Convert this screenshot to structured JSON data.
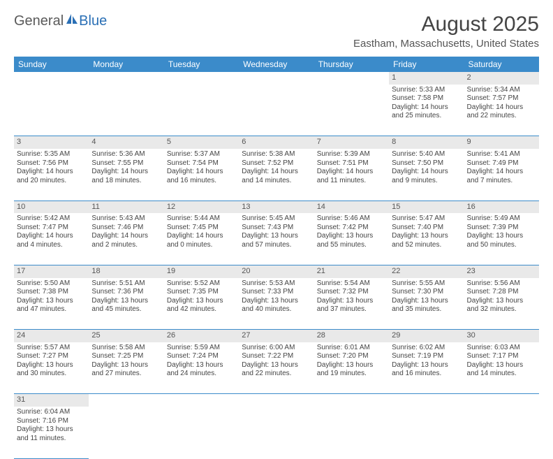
{
  "logo": {
    "part1": "General",
    "part2": "Blue"
  },
  "title": "August 2025",
  "location": "Eastham, Massachusetts, United States",
  "colors": {
    "header_bg": "#3b8bca",
    "header_text": "#ffffff",
    "daynum_bg": "#e9e9e9",
    "border": "#3b8bca",
    "logo_accent": "#2a6fb5",
    "body_text": "#444444"
  },
  "columns": [
    "Sunday",
    "Monday",
    "Tuesday",
    "Wednesday",
    "Thursday",
    "Friday",
    "Saturday"
  ],
  "weeks": [
    {
      "nums": [
        "",
        "",
        "",
        "",
        "",
        "1",
        "2"
      ],
      "cells": [
        null,
        null,
        null,
        null,
        null,
        {
          "sunrise": "5:33 AM",
          "sunset": "7:58 PM",
          "daylight": "14 hours and 25 minutes."
        },
        {
          "sunrise": "5:34 AM",
          "sunset": "7:57 PM",
          "daylight": "14 hours and 22 minutes."
        }
      ]
    },
    {
      "nums": [
        "3",
        "4",
        "5",
        "6",
        "7",
        "8",
        "9"
      ],
      "cells": [
        {
          "sunrise": "5:35 AM",
          "sunset": "7:56 PM",
          "daylight": "14 hours and 20 minutes."
        },
        {
          "sunrise": "5:36 AM",
          "sunset": "7:55 PM",
          "daylight": "14 hours and 18 minutes."
        },
        {
          "sunrise": "5:37 AM",
          "sunset": "7:54 PM",
          "daylight": "14 hours and 16 minutes."
        },
        {
          "sunrise": "5:38 AM",
          "sunset": "7:52 PM",
          "daylight": "14 hours and 14 minutes."
        },
        {
          "sunrise": "5:39 AM",
          "sunset": "7:51 PM",
          "daylight": "14 hours and 11 minutes."
        },
        {
          "sunrise": "5:40 AM",
          "sunset": "7:50 PM",
          "daylight": "14 hours and 9 minutes."
        },
        {
          "sunrise": "5:41 AM",
          "sunset": "7:49 PM",
          "daylight": "14 hours and 7 minutes."
        }
      ]
    },
    {
      "nums": [
        "10",
        "11",
        "12",
        "13",
        "14",
        "15",
        "16"
      ],
      "cells": [
        {
          "sunrise": "5:42 AM",
          "sunset": "7:47 PM",
          "daylight": "14 hours and 4 minutes."
        },
        {
          "sunrise": "5:43 AM",
          "sunset": "7:46 PM",
          "daylight": "14 hours and 2 minutes."
        },
        {
          "sunrise": "5:44 AM",
          "sunset": "7:45 PM",
          "daylight": "14 hours and 0 minutes."
        },
        {
          "sunrise": "5:45 AM",
          "sunset": "7:43 PM",
          "daylight": "13 hours and 57 minutes."
        },
        {
          "sunrise": "5:46 AM",
          "sunset": "7:42 PM",
          "daylight": "13 hours and 55 minutes."
        },
        {
          "sunrise": "5:47 AM",
          "sunset": "7:40 PM",
          "daylight": "13 hours and 52 minutes."
        },
        {
          "sunrise": "5:49 AM",
          "sunset": "7:39 PM",
          "daylight": "13 hours and 50 minutes."
        }
      ]
    },
    {
      "nums": [
        "17",
        "18",
        "19",
        "20",
        "21",
        "22",
        "23"
      ],
      "cells": [
        {
          "sunrise": "5:50 AM",
          "sunset": "7:38 PM",
          "daylight": "13 hours and 47 minutes."
        },
        {
          "sunrise": "5:51 AM",
          "sunset": "7:36 PM",
          "daylight": "13 hours and 45 minutes."
        },
        {
          "sunrise": "5:52 AM",
          "sunset": "7:35 PM",
          "daylight": "13 hours and 42 minutes."
        },
        {
          "sunrise": "5:53 AM",
          "sunset": "7:33 PM",
          "daylight": "13 hours and 40 minutes."
        },
        {
          "sunrise": "5:54 AM",
          "sunset": "7:32 PM",
          "daylight": "13 hours and 37 minutes."
        },
        {
          "sunrise": "5:55 AM",
          "sunset": "7:30 PM",
          "daylight": "13 hours and 35 minutes."
        },
        {
          "sunrise": "5:56 AM",
          "sunset": "7:28 PM",
          "daylight": "13 hours and 32 minutes."
        }
      ]
    },
    {
      "nums": [
        "24",
        "25",
        "26",
        "27",
        "28",
        "29",
        "30"
      ],
      "cells": [
        {
          "sunrise": "5:57 AM",
          "sunset": "7:27 PM",
          "daylight": "13 hours and 30 minutes."
        },
        {
          "sunrise": "5:58 AM",
          "sunset": "7:25 PM",
          "daylight": "13 hours and 27 minutes."
        },
        {
          "sunrise": "5:59 AM",
          "sunset": "7:24 PM",
          "daylight": "13 hours and 24 minutes."
        },
        {
          "sunrise": "6:00 AM",
          "sunset": "7:22 PM",
          "daylight": "13 hours and 22 minutes."
        },
        {
          "sunrise": "6:01 AM",
          "sunset": "7:20 PM",
          "daylight": "13 hours and 19 minutes."
        },
        {
          "sunrise": "6:02 AM",
          "sunset": "7:19 PM",
          "daylight": "13 hours and 16 minutes."
        },
        {
          "sunrise": "6:03 AM",
          "sunset": "7:17 PM",
          "daylight": "13 hours and 14 minutes."
        }
      ]
    },
    {
      "nums": [
        "31",
        "",
        "",
        "",
        "",
        "",
        ""
      ],
      "cells": [
        {
          "sunrise": "6:04 AM",
          "sunset": "7:16 PM",
          "daylight": "13 hours and 11 minutes."
        },
        null,
        null,
        null,
        null,
        null,
        null
      ]
    }
  ],
  "labels": {
    "sunrise": "Sunrise: ",
    "sunset": "Sunset: ",
    "daylight": "Daylight: "
  }
}
